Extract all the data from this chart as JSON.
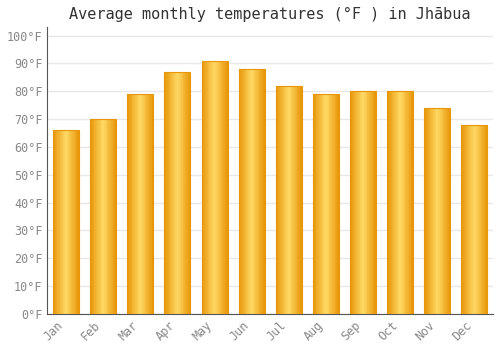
{
  "title": "Average monthly temperatures (°F ) in Jhābua",
  "months": [
    "Jan",
    "Feb",
    "Mar",
    "Apr",
    "May",
    "Jun",
    "Jul",
    "Aug",
    "Sep",
    "Oct",
    "Nov",
    "Dec"
  ],
  "values": [
    66,
    70,
    79,
    87,
    91,
    88,
    82,
    79,
    80,
    80,
    74,
    68
  ],
  "bar_color_center": "#FFD966",
  "bar_color_edge": "#E8970A",
  "yticks": [
    0,
    10,
    20,
    30,
    40,
    50,
    60,
    70,
    80,
    90,
    100
  ],
  "ylim": [
    0,
    103
  ],
  "background_color": "#ffffff",
  "grid_color": "#e8e8e8",
  "title_fontsize": 11,
  "tick_fontsize": 8.5,
  "tick_color": "#888888"
}
